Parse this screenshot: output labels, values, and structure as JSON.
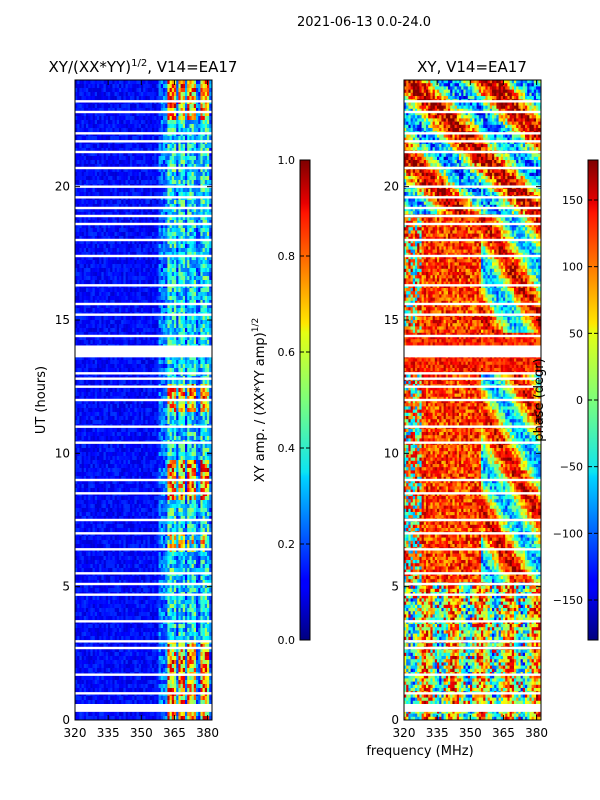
{
  "suptitle": "2021-06-13 0.0-24.0",
  "chart_data": [
    {
      "type": "heatmap",
      "title_main": "XY/(XX*YY)",
      "title_exp": "1/2",
      "title_tail": ", V14=EA17",
      "xlabel": "",
      "ylabel": "UT (hours)",
      "x_range": [
        320,
        382
      ],
      "y_range": [
        0,
        24
      ],
      "x_ticks": [
        320,
        335,
        350,
        365,
        380
      ],
      "y_ticks": [
        0,
        5,
        10,
        15,
        20
      ],
      "colorbar": {
        "label_main": "XY amp. / (XX*YY amp)",
        "label_exp": "1/2",
        "range": [
          0.0,
          1.0
        ],
        "ticks": [
          "0.0",
          "0.2",
          "0.4",
          "0.6",
          "0.8",
          "1.0"
        ],
        "colormap": "jet"
      },
      "bright_channels_mhz": [
        [
          362,
          366
        ],
        [
          367,
          370
        ],
        [
          371,
          375
        ],
        [
          377,
          381
        ]
      ],
      "flagged_hours": [
        0.35,
        0.5,
        1.0,
        1.7,
        2.7,
        2.95,
        3.7,
        4.7,
        5.1,
        5.5,
        6.4,
        7.0,
        7.5,
        8.5,
        9.0,
        10.4,
        11.0,
        12.0,
        12.5,
        12.8,
        13.0,
        13.7,
        14.0,
        14.4,
        15.2,
        15.6,
        16.3,
        17.4,
        18.0,
        18.6,
        18.9,
        19.2,
        19.6,
        20.0,
        20.7,
        21.3,
        21.7,
        22.0,
        22.8,
        23.2
      ]
    },
    {
      "type": "heatmap",
      "title": "XY, V14=EA17",
      "xlabel": "frequency (MHz)",
      "ylabel": "",
      "x_range": [
        320,
        382
      ],
      "y_range": [
        0,
        24
      ],
      "x_ticks": [
        320,
        335,
        350,
        365,
        380
      ],
      "y_ticks": [
        0,
        5,
        10,
        15,
        20
      ],
      "colorbar": {
        "label": "phase (degr)",
        "range": [
          -180,
          180
        ],
        "ticks": [
          "−150",
          "−100",
          "−50",
          "0",
          "50",
          "100",
          "150"
        ],
        "tick_values": [
          -150,
          -100,
          -50,
          0,
          50,
          100,
          150
        ],
        "colormap": "jet"
      },
      "flagged_hours": [
        0.35,
        0.5,
        1.0,
        1.7,
        2.7,
        2.95,
        3.7,
        4.7,
        5.1,
        5.5,
        6.4,
        7.0,
        7.5,
        8.5,
        9.0,
        10.4,
        11.0,
        12.0,
        12.5,
        12.8,
        13.0,
        13.7,
        14.0,
        14.4,
        15.2,
        15.6,
        16.3,
        17.4,
        18.0,
        18.6,
        18.9,
        19.2,
        19.6,
        20.0,
        20.7,
        21.3,
        21.7,
        22.0,
        22.8,
        23.2
      ]
    }
  ]
}
